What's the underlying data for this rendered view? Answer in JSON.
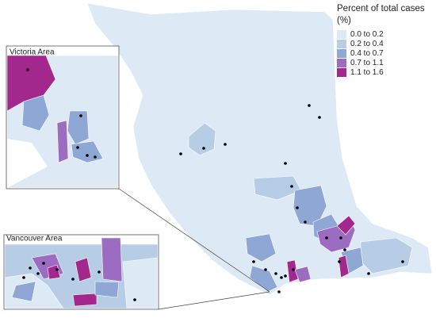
{
  "legend": {
    "title": "Percent of total cases (%)",
    "items": [
      {
        "label": "0.0 to 0.2",
        "color": "#dde9f4"
      },
      {
        "label": "0.2 to 0.4",
        "color": "#b7cde5"
      },
      {
        "label": "0.4 to 0.7",
        "color": "#8ea7d4"
      },
      {
        "label": "0.7 to 1.1",
        "color": "#9b6cbf"
      },
      {
        "label": "1.1 to 1.6",
        "color": "#a2288e"
      }
    ]
  },
  "insets": [
    {
      "label": "Victoria Area"
    },
    {
      "label": "Vancouver Area"
    }
  ]
}
